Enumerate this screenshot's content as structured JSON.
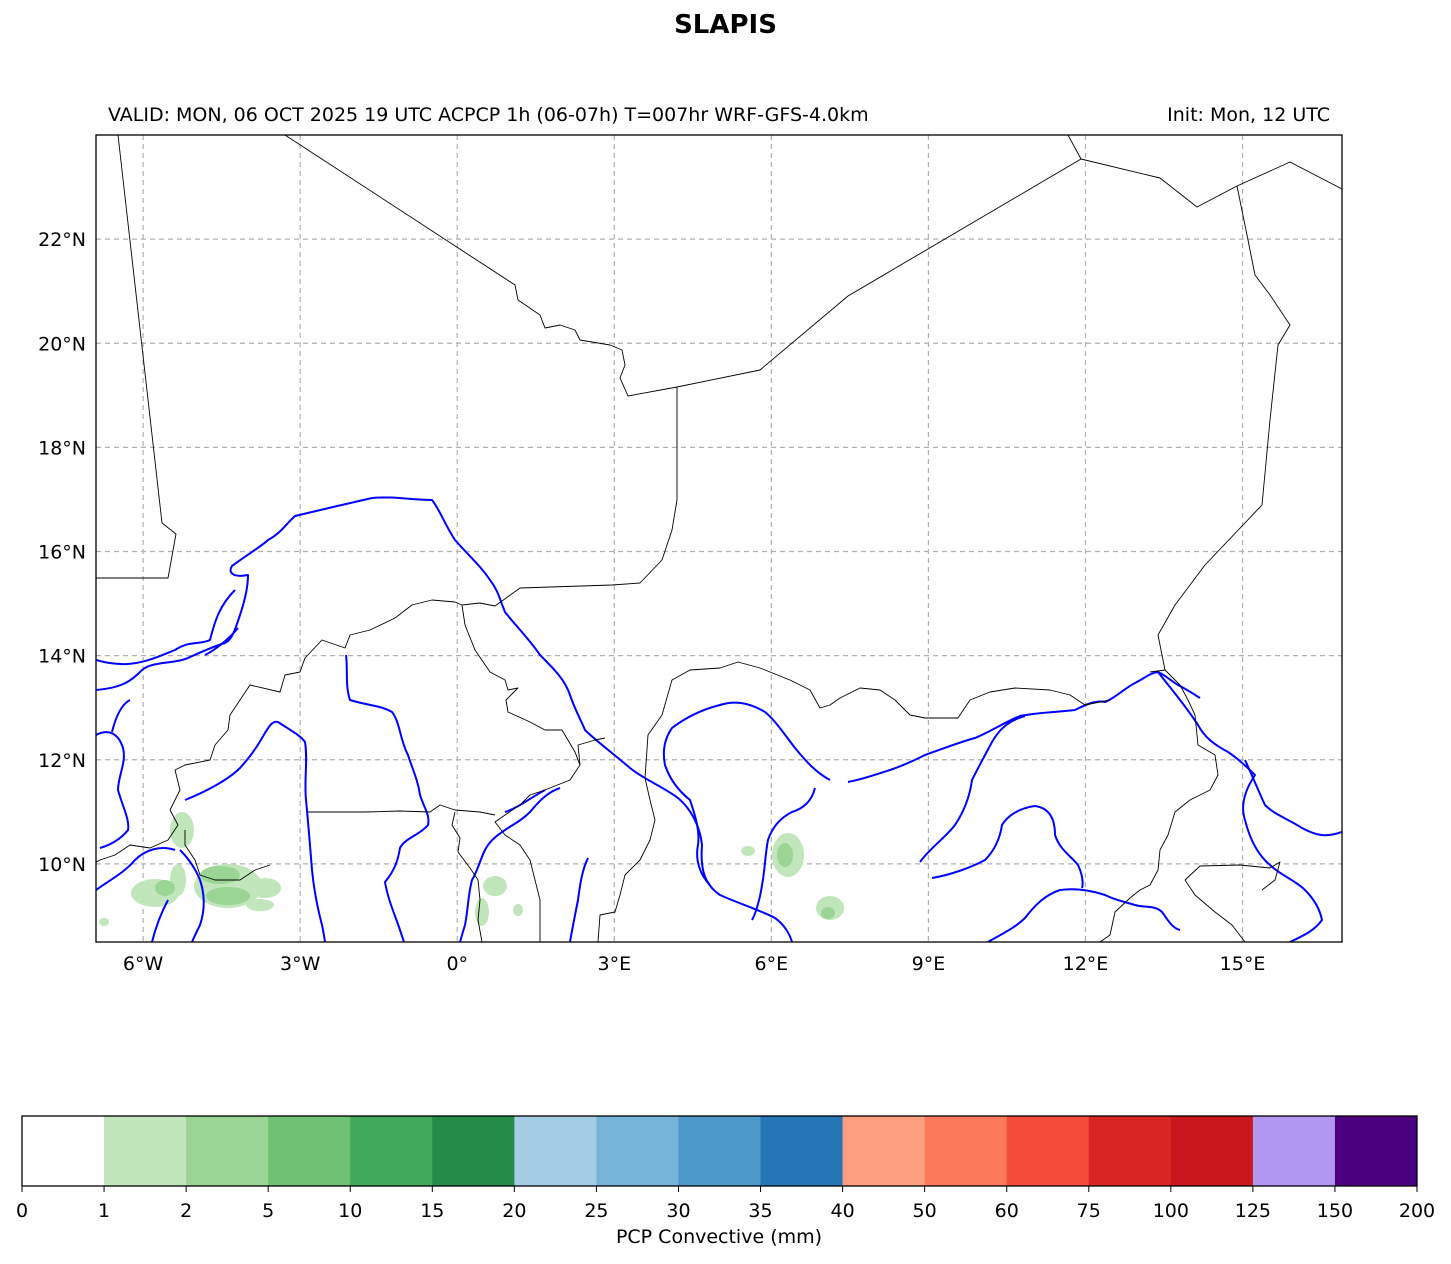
{
  "title": "SLAPIS",
  "subtitle_left": "VALID: MON, 06 OCT 2025 19 UTC   ACPCP 1h (06-07h) T=007hr WRF-GFS-4.0km",
  "subtitle_right": "Init: Mon, 12 UTC",
  "map": {
    "lon_range": [
      -6.9,
      16.9
    ],
    "lat_range": [
      8.5,
      24.0
    ],
    "lon_ticks": [
      -6,
      -3,
      0,
      3,
      6,
      9,
      12,
      15
    ],
    "lon_tick_labels": [
      "6°W",
      "3°W",
      "0°",
      "3°E",
      "6°E",
      "9°E",
      "12°E",
      "15°E"
    ],
    "lat_ticks": [
      10,
      12,
      14,
      16,
      18,
      20,
      22
    ],
    "lat_tick_labels": [
      "10°N",
      "12°N",
      "14°N",
      "16°N",
      "18°N",
      "20°N",
      "22°N"
    ],
    "gridlines": true,
    "border_color": "#000000",
    "river_color": "#0000ff"
  },
  "colorbar": {
    "label": "PCP Convective (mm)",
    "bounds": [
      "0",
      "1",
      "2",
      "5",
      "10",
      "15",
      "20",
      "25",
      "30",
      "35",
      "40",
      "50",
      "60",
      "75",
      "100",
      "125",
      "150",
      "200"
    ],
    "colors": [
      "#ffffff",
      "#c1e6bb",
      "#9ad595",
      "#6fc174",
      "#3fa95c",
      "#248c48",
      "#a4cce4",
      "#75b3d9",
      "#4b98c9",
      "#2575b7",
      "#fc9f80",
      "#fc7a5b",
      "#f34c3a",
      "#d92624",
      "#c9181d",
      "#b197f2",
      "#4b007f"
    ]
  }
}
